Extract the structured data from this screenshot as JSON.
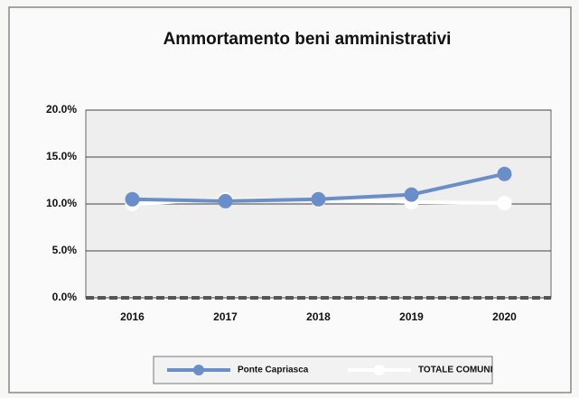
{
  "chart_data": {
    "type": "line",
    "title": "Ammortamento beni amministrativi",
    "categories": [
      "2016",
      "2017",
      "2018",
      "2019",
      "2020"
    ],
    "series": [
      {
        "name": "Ponte Capriasca",
        "color": "#6a8fc8",
        "values": [
          10.5,
          10.3,
          10.5,
          11.0,
          13.2
        ]
      },
      {
        "name": "TOTALE COMUNI",
        "color": "#ffffff",
        "values": [
          10.0,
          10.5,
          10.4,
          10.2,
          10.1
        ]
      }
    ],
    "ylim": [
      0,
      20
    ],
    "yticks": [
      {
        "value": 0,
        "label": "0.0%"
      },
      {
        "value": 5,
        "label": "5.0%"
      },
      {
        "value": 10,
        "label": "10.0%"
      },
      {
        "value": 15,
        "label": "15.0%"
      },
      {
        "value": 20,
        "label": "20.0%"
      }
    ],
    "grid": true,
    "legend": "bottom"
  }
}
